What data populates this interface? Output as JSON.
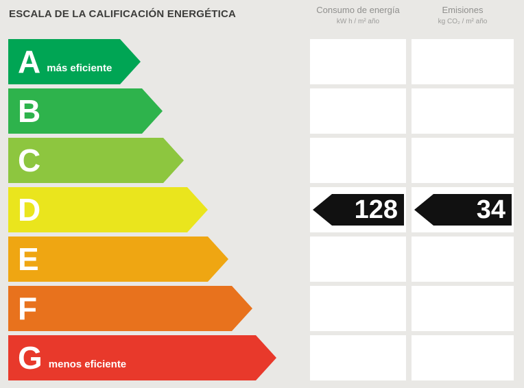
{
  "header": {
    "title": "ESCALA DE LA CALIFICACIÓN ENERGÉTICA",
    "consumo": {
      "title": "Consumo de energía",
      "unit": "kW h / m² año"
    },
    "emisiones": {
      "title": "Emisiones",
      "unit": "kg CO₂ / m² año"
    }
  },
  "ratings": [
    {
      "letter": "A",
      "note": "más eficiente",
      "color": "#00a554"
    },
    {
      "letter": "B",
      "note": "",
      "color": "#2eb34c"
    },
    {
      "letter": "C",
      "note": "",
      "color": "#8dc63f"
    },
    {
      "letter": "D",
      "note": "",
      "color": "#eae51d"
    },
    {
      "letter": "E",
      "note": "",
      "color": "#efa612"
    },
    {
      "letter": "F",
      "note": "",
      "color": "#e8721d"
    },
    {
      "letter": "G",
      "note": "menos eficiente",
      "color": "#e8392b"
    }
  ],
  "values": {
    "rating": "D",
    "consumo": "128",
    "emisiones": "34",
    "badge_color": "#111111"
  },
  "chart_data": {
    "type": "table",
    "title": "ESCALA DE LA CALIFICACIÓN ENERGÉTICA",
    "scale": [
      "A",
      "B",
      "C",
      "D",
      "E",
      "F",
      "G"
    ],
    "rating": "D",
    "columns": [
      {
        "label": "Consumo de energía",
        "unit": "kW h / m² año",
        "value": 128
      },
      {
        "label": "Emisiones",
        "unit": "kg CO₂ / m² año",
        "value": 34
      }
    ],
    "row_annotations": {
      "A": "más eficiente",
      "G": "menos eficiente"
    }
  }
}
